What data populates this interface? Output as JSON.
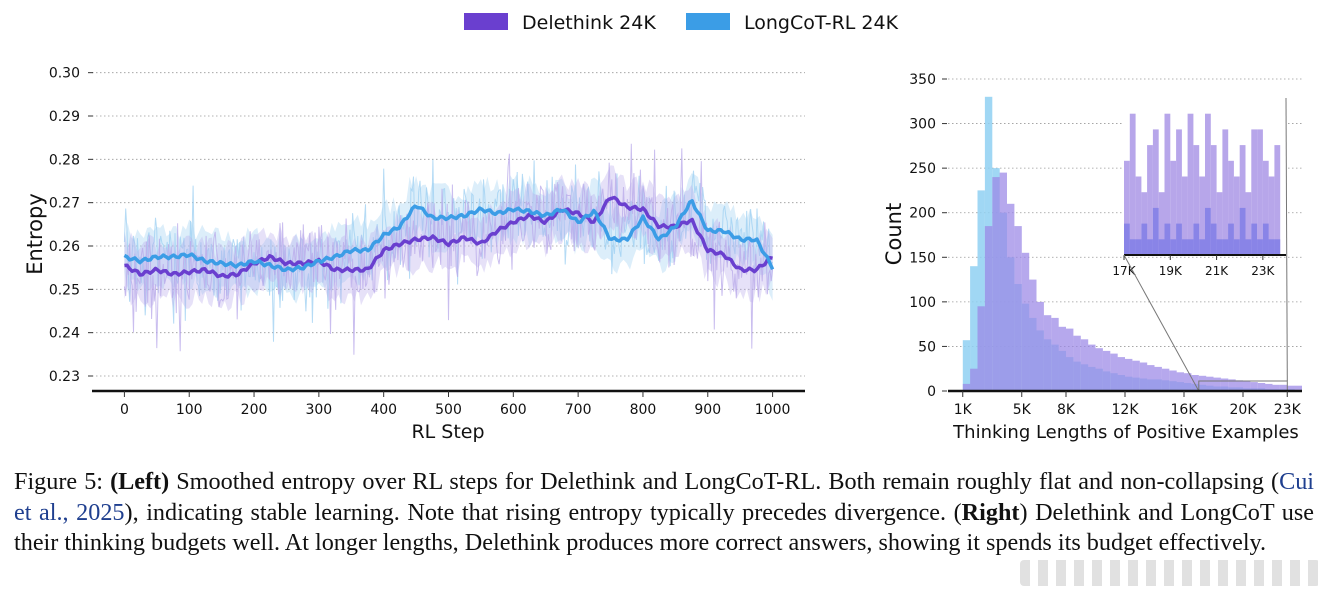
{
  "legend": {
    "items": [
      {
        "label": "Delethink 24K",
        "color": "#6a3fcf"
      },
      {
        "label": "LongCoT-RL 24K",
        "color": "#3b9de6"
      }
    ]
  },
  "chart_data": [
    {
      "type": "line",
      "xlabel": "RL Step",
      "ylabel": "Entropy",
      "xlim": [
        -50,
        1050
      ],
      "ylim": [
        0.227,
        0.302
      ],
      "xticks": [
        0,
        100,
        200,
        300,
        400,
        500,
        600,
        700,
        800,
        900,
        1000
      ],
      "yticks": [
        0.23,
        0.24,
        0.25,
        0.26,
        0.27,
        0.28,
        0.29,
        0.3
      ],
      "ytick_labels": [
        "0.23",
        "0.24",
        "0.25",
        "0.26",
        "0.27",
        "0.28",
        "0.29",
        "0.30"
      ],
      "grid": "horizontal dotted",
      "series": [
        {
          "name": "Delethink 24K",
          "color": "#6a3fcf",
          "x": [
            0,
            25,
            50,
            75,
            100,
            125,
            150,
            175,
            200,
            225,
            250,
            275,
            300,
            325,
            350,
            375,
            400,
            425,
            450,
            475,
            500,
            525,
            550,
            575,
            600,
            625,
            650,
            675,
            700,
            725,
            750,
            775,
            800,
            825,
            850,
            875,
            900,
            925,
            950,
            975,
            1000
          ],
          "values": [
            0.2555,
            0.2535,
            0.2545,
            0.2535,
            0.254,
            0.2545,
            0.253,
            0.2535,
            0.256,
            0.2575,
            0.256,
            0.256,
            0.2565,
            0.2545,
            0.2545,
            0.2545,
            0.259,
            0.2605,
            0.2615,
            0.262,
            0.2605,
            0.262,
            0.2605,
            0.2635,
            0.2655,
            0.267,
            0.2655,
            0.2685,
            0.2675,
            0.2655,
            0.2715,
            0.269,
            0.2685,
            0.2645,
            0.2645,
            0.266,
            0.259,
            0.258,
            0.2545,
            0.2545,
            0.2575
          ]
        },
        {
          "name": "LongCoT-RL 24K",
          "color": "#3b9de6",
          "x": [
            0,
            25,
            50,
            75,
            100,
            125,
            150,
            175,
            200,
            225,
            250,
            275,
            300,
            325,
            350,
            375,
            400,
            425,
            450,
            475,
            500,
            525,
            550,
            575,
            600,
            625,
            650,
            675,
            700,
            725,
            750,
            775,
            800,
            825,
            850,
            875,
            900,
            925,
            950,
            975,
            1000
          ],
          "values": [
            0.2575,
            0.2565,
            0.2575,
            0.2575,
            0.258,
            0.2565,
            0.256,
            0.2555,
            0.2565,
            0.2555,
            0.2545,
            0.255,
            0.2565,
            0.2575,
            0.259,
            0.259,
            0.2625,
            0.2645,
            0.2695,
            0.2665,
            0.2665,
            0.267,
            0.2685,
            0.2675,
            0.2685,
            0.268,
            0.267,
            0.2685,
            0.2655,
            0.268,
            0.2615,
            0.2615,
            0.2665,
            0.2615,
            0.2645,
            0.2705,
            0.2635,
            0.2635,
            0.2615,
            0.2615,
            0.255
          ]
        }
      ]
    },
    {
      "type": "histogram",
      "xlabel": "Thinking Lengths of Positive Examples",
      "ylabel": "Count",
      "xlim": [
        0,
        24000
      ],
      "ylim": [
        0,
        350
      ],
      "xticks": [
        1000,
        5000,
        8000,
        12000,
        16000,
        20000,
        23000
      ],
      "xtick_labels": [
        "1K",
        "5K",
        "8K",
        "12K",
        "16K",
        "20K",
        "23K"
      ],
      "yticks": [
        0,
        50,
        100,
        150,
        200,
        250,
        300,
        350
      ],
      "ytick_labels": [
        "0",
        "50",
        "100",
        "150",
        "200",
        "250",
        "300",
        "350"
      ],
      "bin_width": 500,
      "bin_start": 1000,
      "series": [
        {
          "name": "Delethink 24K",
          "color": "#9a86e6",
          "values": [
            8,
            25,
            95,
            185,
            240,
            245,
            210,
            185,
            155,
            125,
            100,
            85,
            82,
            72,
            70,
            62,
            58,
            52,
            48,
            45,
            42,
            38,
            36,
            34,
            32,
            29,
            27,
            25,
            23,
            21,
            20,
            18,
            17,
            16,
            15,
            14,
            13,
            12,
            11,
            10,
            9,
            8,
            7,
            7,
            6,
            6
          ]
        },
        {
          "name": "LongCoT-RL 24K",
          "color": "#8fd0f2",
          "values": [
            57,
            140,
            225,
            330,
            250,
            200,
            150,
            120,
            98,
            82,
            68,
            58,
            52,
            45,
            38,
            33,
            30,
            27,
            25,
            22,
            20,
            18,
            16,
            15,
            14,
            13,
            13,
            12,
            11,
            10,
            9,
            8,
            7,
            6,
            5,
            5,
            4,
            4,
            3,
            3,
            3,
            2,
            2,
            2,
            2,
            1
          ]
        }
      ],
      "inset": {
        "xlim": [
          17000,
          24000
        ],
        "xticks": [
          17000,
          19000,
          21000,
          23000
        ],
        "xtick_labels": [
          "17K",
          "19K",
          "21K",
          "23K"
        ],
        "bin_start": 17000,
        "bin_width": 250,
        "delethink_values": [
          6,
          9,
          5,
          4,
          7,
          8,
          4,
          9,
          6,
          8,
          5,
          9,
          7,
          5,
          9,
          7,
          4,
          8,
          6,
          5,
          7,
          4,
          8,
          8,
          6,
          5,
          7
        ],
        "longcot_values": [
          2,
          1,
          1,
          2,
          1,
          3,
          1,
          2,
          1,
          2,
          1,
          1,
          2,
          1,
          3,
          2,
          1,
          1,
          2,
          1,
          3,
          1,
          2,
          1,
          2,
          1,
          1
        ]
      }
    }
  ],
  "caption": {
    "fig_label": "Figure 5:",
    "left_label": "(Left)",
    "text1": "Smoothed entropy over RL steps for Delethink and LongCoT-RL. Both remain roughly flat and non-collapsing (",
    "cite": "Cui et al., 2025",
    "text2": "), indicating stable learning. Note that rising entropy typically precedes divergence. (",
    "right_label": "Right",
    "text3": ") Delethink and LongCoT use their thinking budgets well. At longer lengths, Delethink produces more correct answers, showing it spends its budget effectively."
  }
}
